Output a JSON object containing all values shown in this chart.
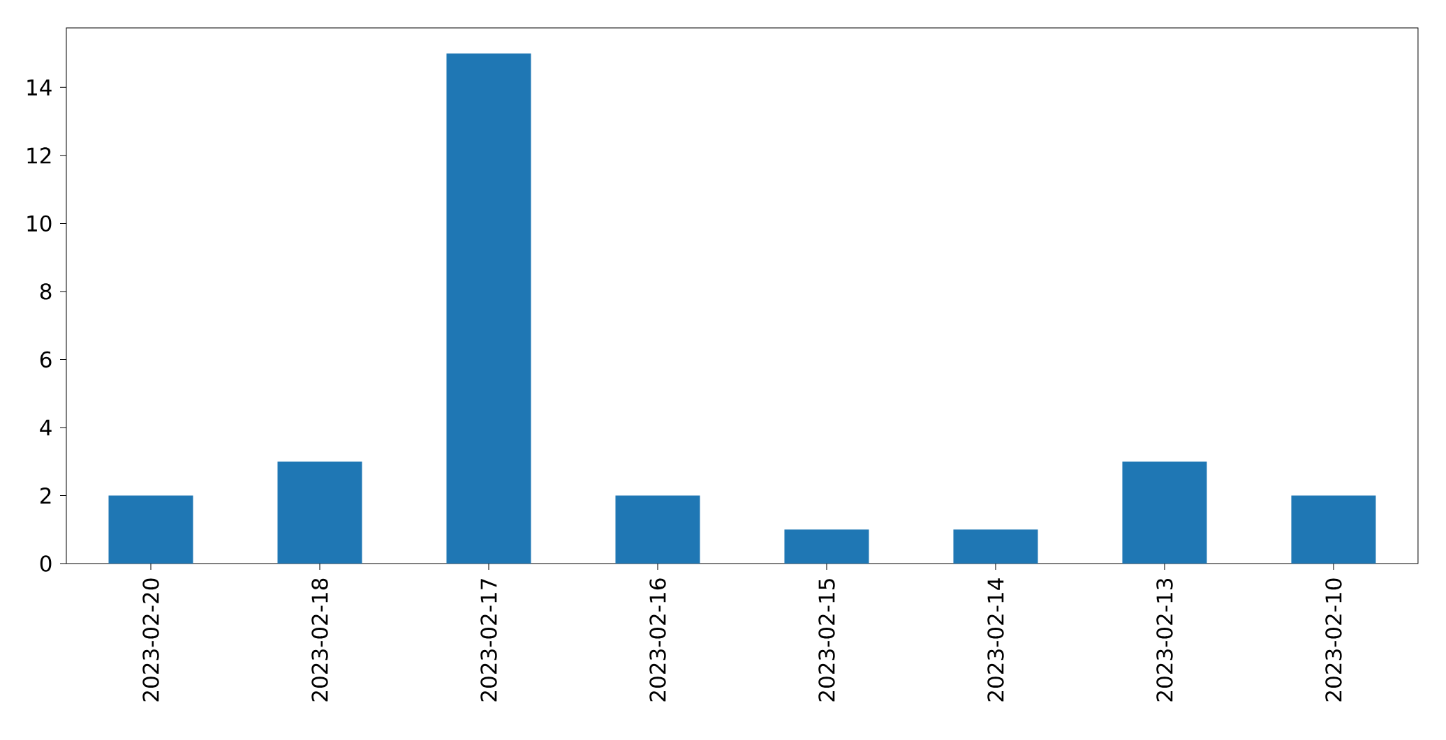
{
  "chart_data": {
    "type": "bar",
    "categories": [
      "2023-02-20",
      "2023-02-18",
      "2023-02-17",
      "2023-02-16",
      "2023-02-15",
      "2023-02-14",
      "2023-02-13",
      "2023-02-10"
    ],
    "values": [
      2,
      3,
      15,
      2,
      1,
      1,
      3,
      2
    ],
    "color": "#1f77b4",
    "ylim": [
      0,
      15.75
    ],
    "yticks": [
      0,
      2,
      4,
      6,
      8,
      10,
      12,
      14
    ]
  }
}
